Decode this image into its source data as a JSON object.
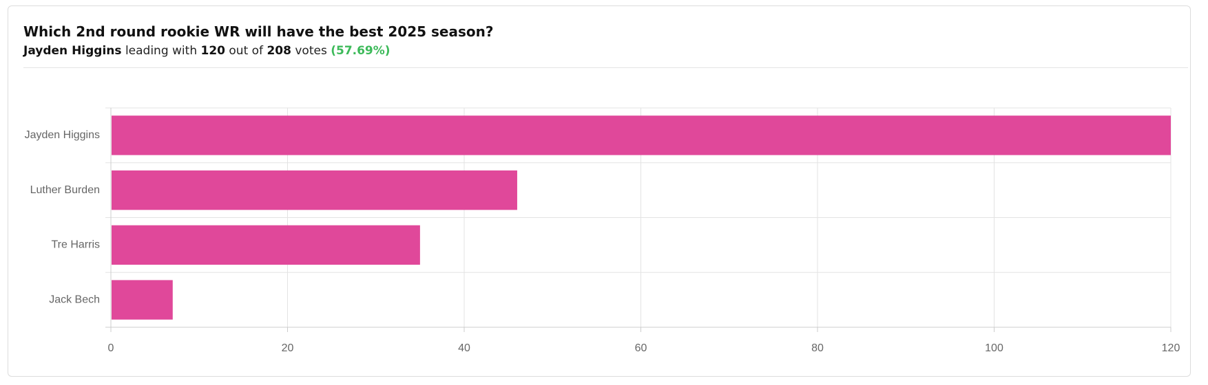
{
  "chart_data": {
    "type": "bar",
    "orientation": "horizontal",
    "title": "Which 2nd round rookie WR will have the best 2025 season?",
    "subtitle_words": [
      "leading with",
      "out of",
      "votes"
    ],
    "total_votes": 208,
    "leader_share": {
      "value": 57.69,
      "label": "(57.69%)"
    },
    "categories": [
      "Jayden Higgins",
      "Luther Burden",
      "Tre Harris",
      "Jack Bech"
    ],
    "values": [
      120,
      46,
      35,
      7
    ],
    "color": "#e0489a",
    "xlim": [
      0,
      120
    ],
    "xticks": [
      0,
      20,
      40,
      60,
      80,
      100,
      120
    ],
    "grid": true
  }
}
